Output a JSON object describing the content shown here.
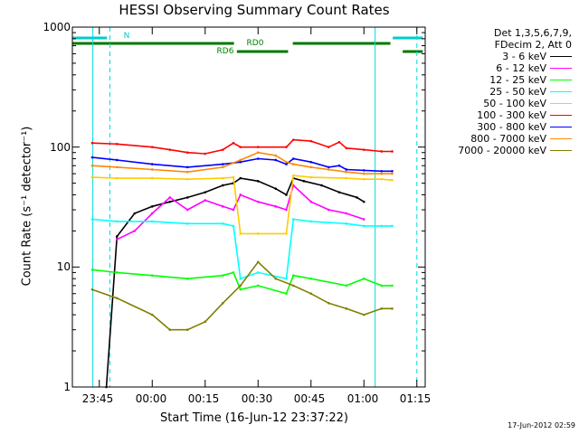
{
  "chart_data": {
    "type": "line",
    "title": "HESSI Observing Summary Count Rates",
    "xlabel": "Start Time (16-Jun-12 23:37:22)",
    "ylabel": "Count Rate (s⁻¹ detector⁻¹)",
    "y_scale": "log",
    "ylim": [
      1,
      1000
    ],
    "yticks": [
      "1",
      "10",
      "100",
      "1000"
    ],
    "xlim": [
      "23:37:22",
      "01:17:22"
    ],
    "xticks": [
      "23:45",
      "00:00",
      "00:15",
      "00:30",
      "00:45",
      "01:00",
      "01:15"
    ],
    "timestamp": "17-Jun-2012 02:59",
    "legend": {
      "header_lines": [
        "Det 1,3,5,6,7,9,",
        "FDecim 2, Att 0"
      ],
      "placement": "right"
    },
    "attenuator_labels": [
      "N",
      "RD0",
      "RD6"
    ],
    "series": [
      {
        "name": "3 - 6 keV",
        "color": "#000000",
        "x": [
          "23:47:00",
          "23:50:00",
          "23:55:00",
          "00:00:00",
          "00:05:00",
          "00:10:00",
          "00:15:00",
          "00:20:00",
          "00:23:00",
          "00:25:00",
          "00:30:00",
          "00:35:00",
          "00:38:00",
          "00:40:00",
          "00:43:00",
          "00:48:00",
          "00:53:00",
          "00:58:00",
          "01:00:00"
        ],
        "y": [
          1,
          18,
          28,
          32,
          35,
          38,
          42,
          48,
          50,
          55,
          52,
          45,
          40,
          55,
          52,
          48,
          42,
          38,
          35
        ]
      },
      {
        "name": "6 - 12 keV",
        "color": "#ff00ff",
        "x": [
          "23:50:00",
          "23:55:00",
          "00:00:00",
          "00:05:00",
          "00:10:00",
          "00:15:00",
          "00:20:00",
          "00:23:00",
          "00:25:00",
          "00:30:00",
          "00:35:00",
          "00:38:00",
          "00:40:00",
          "00:45:00",
          "00:50:00",
          "00:55:00",
          "01:00:00"
        ],
        "y": [
          17,
          20,
          28,
          38,
          30,
          36,
          32,
          30,
          40,
          35,
          32,
          30,
          48,
          35,
          30,
          28,
          25
        ]
      },
      {
        "name": "12 - 25 keV",
        "color": "#00ff00",
        "x": [
          "23:43:00",
          "23:50:00",
          "00:00:00",
          "00:10:00",
          "00:20:00",
          "00:23:00",
          "00:25:00",
          "00:30:00",
          "00:38:00",
          "00:40:00",
          "00:45:00",
          "00:55:00",
          "01:00:00",
          "01:05:00",
          "01:08:00"
        ],
        "y": [
          9.5,
          9,
          8.5,
          8,
          8.5,
          9,
          6.5,
          7,
          6,
          8.5,
          8,
          7,
          8,
          7,
          7
        ]
      },
      {
        "name": "25 - 50 keV",
        "color": "#00ffff",
        "x": [
          "23:43:00",
          "23:50:00",
          "00:00:00",
          "00:10:00",
          "00:20:00",
          "00:23:00",
          "00:25:00",
          "00:30:00",
          "00:38:00",
          "00:40:00",
          "00:45:00",
          "00:55:00",
          "01:00:00",
          "01:05:00",
          "01:08:00"
        ],
        "y": [
          25,
          24,
          24,
          23,
          23,
          22,
          8,
          9,
          8,
          25,
          24,
          23,
          22,
          22,
          22
        ]
      },
      {
        "name": "50 - 100 keV",
        "color": "#ffcc00",
        "x": [
          "23:43:00",
          "23:50:00",
          "00:00:00",
          "00:10:00",
          "00:20:00",
          "00:23:00",
          "00:25:00",
          "00:30:00",
          "00:38:00",
          "00:40:00",
          "00:45:00",
          "00:55:00",
          "01:00:00",
          "01:05:00",
          "01:08:00"
        ],
        "y": [
          56,
          55,
          55,
          54,
          55,
          56,
          19,
          19,
          19,
          58,
          56,
          55,
          54,
          54,
          53
        ]
      },
      {
        "name": "100 - 300 keV",
        "color": "#ff0000",
        "x": [
          "23:43:00",
          "23:50:00",
          "00:00:00",
          "00:05:00",
          "00:10:00",
          "00:15:00",
          "00:20:00",
          "00:23:00",
          "00:25:00",
          "00:30:00",
          "00:38:00",
          "00:40:00",
          "00:45:00",
          "00:50:00",
          "00:53:00",
          "00:55:00",
          "01:00:00",
          "01:05:00",
          "01:08:00"
        ],
        "y": [
          108,
          106,
          100,
          95,
          90,
          88,
          95,
          108,
          100,
          100,
          100,
          115,
          112,
          100,
          110,
          98,
          95,
          92,
          92
        ]
      },
      {
        "name": "300 - 800 keV",
        "color": "#0000ff",
        "x": [
          "23:43:00",
          "23:50:00",
          "00:00:00",
          "00:10:00",
          "00:20:00",
          "00:25:00",
          "00:30:00",
          "00:35:00",
          "00:38:00",
          "00:40:00",
          "00:45:00",
          "00:50:00",
          "00:53:00",
          "00:55:00",
          "01:00:00",
          "01:05:00",
          "01:08:00"
        ],
        "y": [
          82,
          78,
          72,
          68,
          72,
          75,
          80,
          78,
          72,
          80,
          75,
          68,
          70,
          65,
          64,
          63,
          63
        ]
      },
      {
        "name": "800 - 7000 keV",
        "color": "#ff8800",
        "x": [
          "23:43:00",
          "23:50:00",
          "00:00:00",
          "00:10:00",
          "00:20:00",
          "00:25:00",
          "00:30:00",
          "00:35:00",
          "00:38:00",
          "00:40:00",
          "00:45:00",
          "00:50:00",
          "00:55:00",
          "01:00:00",
          "01:05:00",
          "01:08:00"
        ],
        "y": [
          70,
          68,
          65,
          62,
          68,
          78,
          90,
          85,
          75,
          72,
          68,
          65,
          62,
          60,
          60,
          60
        ]
      },
      {
        "name": "7000 - 20000 keV",
        "color": "#808000",
        "x": [
          "23:43:00",
          "23:50:00",
          "00:00:00",
          "00:05:00",
          "00:10:00",
          "00:15:00",
          "00:20:00",
          "00:25:00",
          "00:30:00",
          "00:35:00",
          "00:40:00",
          "00:45:00",
          "00:50:00",
          "00:55:00",
          "01:00:00",
          "01:05:00",
          "01:08:00"
        ],
        "y": [
          6.5,
          5.5,
          4,
          3,
          3,
          3.5,
          5,
          7,
          11,
          8,
          7,
          6,
          5,
          4.5,
          4,
          4.5,
          4.5
        ]
      }
    ]
  }
}
